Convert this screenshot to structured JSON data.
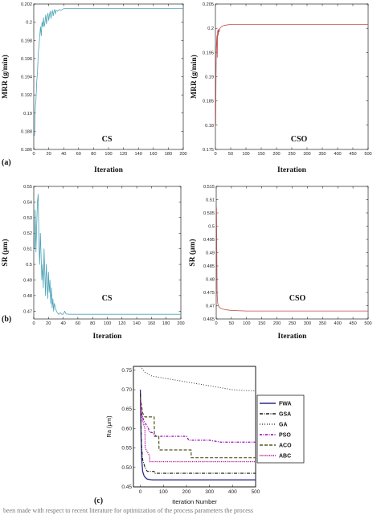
{
  "chart_data": [
    {
      "type": "line",
      "panel_label": "(a)",
      "annotation": "CS",
      "xlabel": "Iteration",
      "ylabel": "MRR (g/min)",
      "xlim": [
        0,
        200
      ],
      "ylim": [
        0.186,
        0.202
      ],
      "xticks": [
        0,
        20,
        40,
        60,
        80,
        100,
        120,
        140,
        160,
        180,
        200
      ],
      "yticks": [
        0.186,
        0.188,
        0.19,
        0.192,
        0.194,
        0.196,
        0.198,
        0.2,
        0.202
      ],
      "ytick_labels": [
        "0.186",
        "0.188",
        "0.19",
        "0.192",
        "0.194",
        "0.196",
        "0.198",
        "0.2",
        "0.202"
      ],
      "color": "#4aa3b8",
      "series": [
        {
          "x": [
            1,
            2,
            3,
            4,
            5,
            6,
            7,
            8,
            9,
            10,
            11,
            12,
            13,
            14,
            15,
            16,
            17,
            18,
            19,
            20,
            21,
            22,
            23,
            24,
            25,
            26,
            27,
            28,
            29,
            30,
            32,
            34,
            36,
            38,
            40,
            45,
            50,
            100,
            150,
            200
          ],
          "y": [
            0.1875,
            0.1905,
            0.1915,
            0.1935,
            0.1945,
            0.1965,
            0.1975,
            0.1985,
            0.1995,
            0.1985,
            0.2,
            0.1995,
            0.2005,
            0.1995,
            0.2,
            0.2008,
            0.1998,
            0.2005,
            0.201,
            0.2002,
            0.2008,
            0.2012,
            0.2004,
            0.201,
            0.2013,
            0.2007,
            0.2012,
            0.2014,
            0.2009,
            0.2013,
            0.2012,
            0.2014,
            0.2013,
            0.2014,
            0.2015,
            0.2015,
            0.2015,
            0.2015,
            0.2015,
            0.2015
          ]
        }
      ]
    },
    {
      "type": "line",
      "panel_label": "",
      "annotation": "CSO",
      "xlabel": "Iteration",
      "ylabel": "MRR (g/min)",
      "xlim": [
        0,
        500
      ],
      "ylim": [
        0.175,
        0.205
      ],
      "xticks": [
        0,
        50,
        100,
        150,
        200,
        250,
        300,
        350,
        400,
        450,
        500
      ],
      "yticks": [
        0.175,
        0.18,
        0.185,
        0.19,
        0.195,
        0.2,
        0.205
      ],
      "ytick_labels": [
        "0.175",
        "0.18",
        "0.185",
        "0.19",
        "0.195",
        "0.2",
        "0.205"
      ],
      "color": "#c0504d",
      "series": [
        {
          "x": [
            1,
            2,
            3,
            4,
            5,
            6,
            7,
            8,
            9,
            10,
            11,
            12,
            14,
            16,
            18,
            20,
            25,
            30,
            40,
            50,
            60,
            100,
            200,
            300,
            400,
            500
          ],
          "y": [
            0.18,
            0.19,
            0.196,
            0.1975,
            0.1985,
            0.194,
            0.1992,
            0.1996,
            0.1985,
            0.1994,
            0.1998,
            0.1992,
            0.1999,
            0.2001,
            0.2002,
            0.2003,
            0.2005,
            0.2006,
            0.2007,
            0.2008,
            0.2008,
            0.2008,
            0.2008,
            0.2008,
            0.2008,
            0.2008
          ]
        }
      ]
    },
    {
      "type": "line",
      "panel_label": "(b)",
      "annotation": "CS",
      "xlabel": "Iteration",
      "ylabel": "SR (μm)",
      "xlim": [
        0,
        200
      ],
      "ylim": [
        0.465,
        0.55
      ],
      "xticks": [
        0,
        20,
        40,
        60,
        80,
        100,
        120,
        140,
        160,
        180,
        200
      ],
      "yticks": [
        0.47,
        0.48,
        0.49,
        0.5,
        0.51,
        0.52,
        0.53,
        0.54,
        0.55
      ],
      "ytick_labels": [
        "0.47",
        "0.48",
        "0.49",
        "0.5",
        "0.51",
        "0.52",
        "0.53",
        "0.54",
        "0.55"
      ],
      "color": "#4aa3b8",
      "series": [
        {
          "x": [
            1,
            2,
            3,
            4,
            5,
            6,
            7,
            8,
            9,
            10,
            11,
            12,
            13,
            14,
            15,
            16,
            17,
            18,
            19,
            20,
            21,
            22,
            23,
            24,
            25,
            26,
            27,
            28,
            30,
            32,
            34,
            36,
            38,
            40,
            42,
            44,
            46,
            48,
            50,
            100,
            150,
            200
          ],
          "y": [
            0.51,
            0.535,
            0.508,
            0.525,
            0.54,
            0.545,
            0.515,
            0.5,
            0.52,
            0.505,
            0.49,
            0.5,
            0.485,
            0.51,
            0.495,
            0.48,
            0.5,
            0.49,
            0.478,
            0.495,
            0.482,
            0.49,
            0.475,
            0.485,
            0.472,
            0.478,
            0.47,
            0.475,
            0.471,
            0.469,
            0.468,
            0.469,
            0.468,
            0.468,
            0.47,
            0.4682,
            0.4681,
            0.468,
            0.468,
            0.468,
            0.468,
            0.468
          ]
        }
      ]
    },
    {
      "type": "line",
      "panel_label": "",
      "annotation": "CSO",
      "xlabel": "Iteration",
      "ylabel": "SR (μm)",
      "xlim": [
        0,
        500
      ],
      "ylim": [
        0.465,
        0.515
      ],
      "xticks": [
        0,
        50,
        100,
        150,
        200,
        250,
        300,
        350,
        400,
        450,
        500
      ],
      "yticks": [
        0.465,
        0.47,
        0.475,
        0.48,
        0.485,
        0.49,
        0.495,
        0.5,
        0.505,
        0.51,
        0.515
      ],
      "ytick_labels": [
        "0.465",
        "0.47",
        "0.475",
        "0.48",
        "0.485",
        "0.49",
        "0.495",
        "0.5",
        "0.505",
        "0.51",
        "0.515"
      ],
      "color": "#c0504d",
      "series": [
        {
          "x": [
            1,
            2,
            3,
            4,
            5,
            6,
            8,
            10,
            15,
            20,
            30,
            50,
            100,
            200,
            300,
            400,
            500
          ],
          "y": [
            0.507,
            0.49,
            0.475,
            0.472,
            0.471,
            0.4705,
            0.47,
            0.4695,
            0.469,
            0.4688,
            0.4685,
            0.4682,
            0.468,
            0.468,
            0.468,
            0.468,
            0.468
          ]
        }
      ]
    },
    {
      "type": "line",
      "panel_label": "(c)",
      "xlabel": "Iteration Number",
      "ylabel": "Ra (μm)",
      "xlim": [
        -30,
        500
      ],
      "ylim": [
        0.45,
        0.76
      ],
      "xticks": [
        0,
        100,
        200,
        300,
        400,
        500
      ],
      "yticks": [
        0.45,
        0.5,
        0.55,
        0.6,
        0.65,
        0.7,
        0.75
      ],
      "ytick_labels": [
        "0.45",
        "0.50",
        "0.55",
        "0.60",
        "0.65",
        "0.70",
        "0.75"
      ],
      "legend_position": "right",
      "series": [
        {
          "name": "FWA",
          "color": "#2b2b8c",
          "dash": "",
          "width": 1.3,
          "x": [
            0,
            3,
            6,
            10,
            15,
            20,
            30,
            50,
            500
          ],
          "y": [
            0.7,
            0.58,
            0.52,
            0.49,
            0.48,
            0.475,
            0.47,
            0.468,
            0.468
          ]
        },
        {
          "name": "GSA",
          "color": "#1a1a1a",
          "dash": "4,1.5,1,1.5",
          "width": 1.1,
          "x": [
            0,
            5,
            10,
            20,
            30,
            60,
            61,
            500
          ],
          "y": [
            0.69,
            0.56,
            0.52,
            0.5,
            0.49,
            0.49,
            0.485,
            0.485
          ]
        },
        {
          "name": "GA",
          "color": "#444444",
          "dash": "1,2",
          "width": 1.1,
          "x": [
            0,
            20,
            50,
            100,
            150,
            200,
            250,
            300,
            350,
            400,
            450,
            500
          ],
          "y": [
            0.76,
            0.745,
            0.735,
            0.73,
            0.725,
            0.72,
            0.715,
            0.71,
            0.705,
            0.7,
            0.698,
            0.697
          ]
        },
        {
          "name": "PSO",
          "color": "#a020c0",
          "dash": "3,1.5,1,1.5",
          "width": 1.4,
          "x": [
            0,
            5,
            10,
            15,
            25,
            35,
            40,
            50,
            60,
            70,
            80,
            100,
            150,
            200,
            210,
            250,
            300,
            350,
            400,
            450,
            500
          ],
          "y": [
            0.67,
            0.64,
            0.63,
            0.62,
            0.61,
            0.6,
            0.59,
            0.59,
            0.585,
            0.58,
            0.58,
            0.58,
            0.58,
            0.58,
            0.57,
            0.57,
            0.57,
            0.565,
            0.565,
            0.565,
            0.565
          ]
        },
        {
          "name": "ACO",
          "color": "#555522",
          "dash": "4,2",
          "width": 1.2,
          "x": [
            0,
            10,
            20,
            40,
            60,
            61,
            80,
            81,
            200,
            220,
            221,
            500
          ],
          "y": [
            0.68,
            0.64,
            0.63,
            0.63,
            0.63,
            0.58,
            0.58,
            0.545,
            0.545,
            0.545,
            0.525,
            0.525
          ]
        },
        {
          "name": "ABC",
          "color": "#b0209a",
          "dash": "1.2,1.2",
          "width": 1.4,
          "x": [
            0,
            10,
            20,
            21,
            40,
            41,
            100,
            500
          ],
          "y": [
            0.66,
            0.62,
            0.6,
            0.55,
            0.53,
            0.515,
            0.515,
            0.515
          ]
        }
      ]
    }
  ],
  "caption": "been made with respect to recent literature for optimization of the process parameters the process"
}
